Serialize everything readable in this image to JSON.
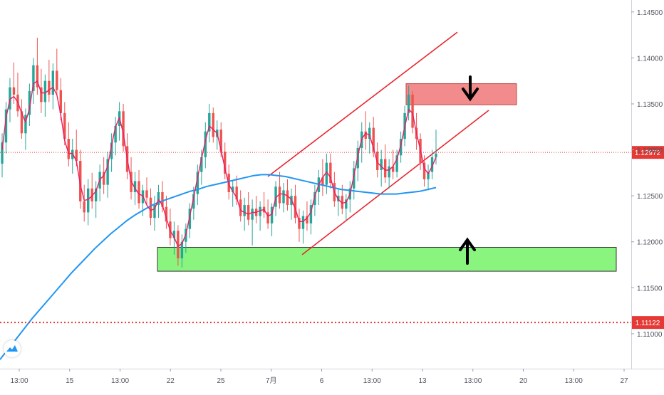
{
  "chart_data": {
    "type": "candlestick",
    "instrument_note": "",
    "y_axis": {
      "position": "right",
      "ylim": [
        1.1062,
        1.1463
      ],
      "ticks": [
        1.145,
        1.14,
        1.135,
        1.13,
        1.125,
        1.12,
        1.115,
        1.11
      ],
      "tick_labels": [
        "1.14500",
        "1.14000",
        "1.13500",
        "1.13000",
        "1.12500",
        "1.12000",
        "1.11500",
        "1.11000"
      ]
    },
    "x_axis": {
      "tick_labels": [
        "13:00",
        "15",
        "13:00",
        "22",
        "25",
        "7月",
        "6",
        "13:00",
        "13",
        "13:00",
        "20",
        "13:00",
        "27"
      ]
    },
    "price_lines": [
      {
        "label": "1.12972",
        "value": 1.12972,
        "color": "#e53935",
        "style": "dotted-thin"
      },
      {
        "label": "1.11122",
        "value": 1.11122,
        "color": "#e53935",
        "style": "dotted-bold"
      }
    ],
    "zones": [
      {
        "kind": "resistance",
        "from": 1.1349,
        "to": 1.1372,
        "color": "#f28b8b",
        "arrow": "down"
      },
      {
        "kind": "support",
        "from": 1.1168,
        "to": 1.1194,
        "color": "#8af57e",
        "arrow": "up"
      }
    ],
    "channel": {
      "color": "#e8262f",
      "lower_line": {
        "start": 1.1186,
        "end": 1.1343
      },
      "upper_line": {
        "start": 1.1271,
        "end": 1.1428
      }
    },
    "series": [
      {
        "kind": "ohlc",
        "up_color": "#26a69a",
        "down_color": "#ef5350",
        "values": [
          [
            1.1285,
            1.1318,
            1.127,
            1.1308
          ],
          [
            1.1308,
            1.1352,
            1.1296,
            1.1344
          ],
          [
            1.1344,
            1.1378,
            1.133,
            1.1368
          ],
          [
            1.1368,
            1.1395,
            1.135,
            1.136
          ],
          [
            1.136,
            1.1384,
            1.1336,
            1.1342
          ],
          [
            1.1342,
            1.1355,
            1.1312,
            1.1318
          ],
          [
            1.1318,
            1.1345,
            1.13,
            1.1338
          ],
          [
            1.1338,
            1.1372,
            1.1326,
            1.1364
          ],
          [
            1.1364,
            1.14,
            1.135,
            1.1392
          ],
          [
            1.1392,
            1.1422,
            1.136,
            1.1368
          ],
          [
            1.1368,
            1.1388,
            1.134,
            1.1352
          ],
          [
            1.1352,
            1.1382,
            1.1336,
            1.1375
          ],
          [
            1.1375,
            1.1398,
            1.1352,
            1.136
          ],
          [
            1.136,
            1.1394,
            1.1344,
            1.1386
          ],
          [
            1.1386,
            1.141,
            1.136,
            1.1365
          ],
          [
            1.1365,
            1.1378,
            1.1332,
            1.134
          ],
          [
            1.134,
            1.1352,
            1.1305,
            1.1312
          ],
          [
            1.1312,
            1.133,
            1.1282,
            1.129
          ],
          [
            1.129,
            1.1312,
            1.1274,
            1.13
          ],
          [
            1.13,
            1.1322,
            1.1282,
            1.1288
          ],
          [
            1.1288,
            1.13,
            1.1236,
            1.1244
          ],
          [
            1.1244,
            1.1262,
            1.1222,
            1.1232
          ],
          [
            1.1232,
            1.1268,
            1.1218,
            1.1258
          ],
          [
            1.1258,
            1.1275,
            1.1236,
            1.1244
          ],
          [
            1.1244,
            1.1266,
            1.1226,
            1.1258
          ],
          [
            1.1258,
            1.1284,
            1.1244,
            1.1276
          ],
          [
            1.1276,
            1.1292,
            1.1252,
            1.1262
          ],
          [
            1.1262,
            1.1298,
            1.1248,
            1.129
          ],
          [
            1.129,
            1.1318,
            1.1276,
            1.1308
          ],
          [
            1.1308,
            1.1336,
            1.1294,
            1.1326
          ],
          [
            1.1326,
            1.1352,
            1.131,
            1.1342
          ],
          [
            1.1342,
            1.135,
            1.1298,
            1.1304
          ],
          [
            1.1304,
            1.1318,
            1.1268,
            1.1276
          ],
          [
            1.1276,
            1.1292,
            1.1246,
            1.1254
          ],
          [
            1.1254,
            1.1276,
            1.124,
            1.1266
          ],
          [
            1.1266,
            1.1278,
            1.1236,
            1.1242
          ],
          [
            1.1242,
            1.1262,
            1.1228,
            1.1256
          ],
          [
            1.1256,
            1.127,
            1.124,
            1.1248
          ],
          [
            1.1248,
            1.1258,
            1.1218,
            1.1226
          ],
          [
            1.1226,
            1.125,
            1.1212,
            1.124
          ],
          [
            1.124,
            1.1262,
            1.1226,
            1.1254
          ],
          [
            1.1254,
            1.1266,
            1.1232,
            1.1238
          ],
          [
            1.1238,
            1.125,
            1.1214,
            1.1222
          ],
          [
            1.1222,
            1.1236,
            1.1196,
            1.1204
          ],
          [
            1.1204,
            1.1222,
            1.1186,
            1.1212
          ],
          [
            1.1212,
            1.1218,
            1.1174,
            1.1182
          ],
          [
            1.1182,
            1.1208,
            1.1172,
            1.12
          ],
          [
            1.12,
            1.122,
            1.1188,
            1.1214
          ],
          [
            1.1214,
            1.1242,
            1.1204,
            1.1236
          ],
          [
            1.1236,
            1.126,
            1.1224,
            1.1252
          ],
          [
            1.1252,
            1.1284,
            1.124,
            1.1276
          ],
          [
            1.1276,
            1.13,
            1.1262,
            1.1292
          ],
          [
            1.1292,
            1.133,
            1.128,
            1.132
          ],
          [
            1.132,
            1.135,
            1.1308,
            1.134
          ],
          [
            1.134,
            1.1346,
            1.1308,
            1.1314
          ],
          [
            1.1314,
            1.1332,
            1.13,
            1.1322
          ],
          [
            1.1322,
            1.133,
            1.1292,
            1.1298
          ],
          [
            1.1298,
            1.1308,
            1.1268,
            1.1274
          ],
          [
            1.1274,
            1.1284,
            1.1246,
            1.1254
          ],
          [
            1.1254,
            1.1266,
            1.1238,
            1.126
          ],
          [
            1.126,
            1.1272,
            1.124,
            1.1246
          ],
          [
            1.1246,
            1.1256,
            1.1222,
            1.1228
          ],
          [
            1.1228,
            1.1248,
            1.1212,
            1.124
          ],
          [
            1.124,
            1.1254,
            1.1218,
            1.1224
          ],
          [
            1.1224,
            1.1246,
            1.1196,
            1.1236
          ],
          [
            1.1236,
            1.125,
            1.122,
            1.1228
          ],
          [
            1.1228,
            1.1244,
            1.1212,
            1.1238
          ],
          [
            1.1238,
            1.1254,
            1.1226,
            1.1232
          ],
          [
            1.1232,
            1.1246,
            1.1214,
            1.122
          ],
          [
            1.122,
            1.1242,
            1.1206,
            1.1238
          ],
          [
            1.1238,
            1.1266,
            1.1228,
            1.126
          ],
          [
            1.126,
            1.1276,
            1.1236,
            1.1242
          ],
          [
            1.1242,
            1.1264,
            1.1232,
            1.1256
          ],
          [
            1.1256,
            1.1268,
            1.1234,
            1.124
          ],
          [
            1.124,
            1.1258,
            1.1224,
            1.125
          ],
          [
            1.125,
            1.1262,
            1.122,
            1.1226
          ],
          [
            1.1226,
            1.1236,
            1.12,
            1.1214
          ],
          [
            1.1214,
            1.1234,
            1.1198,
            1.1228
          ],
          [
            1.1228,
            1.1244,
            1.1212,
            1.122
          ],
          [
            1.122,
            1.1246,
            1.1208,
            1.124
          ],
          [
            1.124,
            1.1262,
            1.1228,
            1.1254
          ],
          [
            1.1254,
            1.1278,
            1.124,
            1.127
          ],
          [
            1.127,
            1.129,
            1.125,
            1.1262
          ],
          [
            1.1262,
            1.1296,
            1.1252,
            1.1286
          ],
          [
            1.1286,
            1.1296,
            1.1258,
            1.1264
          ],
          [
            1.1264,
            1.1276,
            1.1238,
            1.1244
          ],
          [
            1.1244,
            1.1258,
            1.1228,
            1.125
          ],
          [
            1.125,
            1.1262,
            1.123,
            1.1236
          ],
          [
            1.1236,
            1.1252,
            1.1224,
            1.1246
          ],
          [
            1.1246,
            1.1266,
            1.1232,
            1.1258
          ],
          [
            1.1258,
            1.1288,
            1.1246,
            1.128
          ],
          [
            1.128,
            1.131,
            1.1266,
            1.1302
          ],
          [
            1.1302,
            1.133,
            1.1286,
            1.132
          ],
          [
            1.132,
            1.1342,
            1.13,
            1.1312
          ],
          [
            1.1312,
            1.133,
            1.1296,
            1.1324
          ],
          [
            1.1324,
            1.1336,
            1.1292,
            1.1298
          ],
          [
            1.1298,
            1.1308,
            1.127,
            1.1278
          ],
          [
            1.1278,
            1.13,
            1.126,
            1.129
          ],
          [
            1.129,
            1.1306,
            1.1264,
            1.127
          ],
          [
            1.127,
            1.129,
            1.1258,
            1.1282
          ],
          [
            1.1282,
            1.13,
            1.1268,
            1.1276
          ],
          [
            1.1276,
            1.13,
            1.127,
            1.1294
          ],
          [
            1.1294,
            1.132,
            1.1286,
            1.1312
          ],
          [
            1.1312,
            1.1348,
            1.1304,
            1.134
          ],
          [
            1.134,
            1.137,
            1.1332,
            1.136
          ],
          [
            1.136,
            1.1364,
            1.1318,
            1.1324
          ],
          [
            1.1324,
            1.134,
            1.13,
            1.1312
          ],
          [
            1.1312,
            1.1318,
            1.1278,
            1.1286
          ],
          [
            1.1286,
            1.1294,
            1.126,
            1.1268
          ],
          [
            1.1268,
            1.1284,
            1.1256,
            1.1276
          ],
          [
            1.1276,
            1.13,
            1.1268,
            1.1292
          ],
          [
            1.1292,
            1.1322,
            1.1284,
            1.1296
          ]
        ]
      },
      {
        "kind": "moving_average",
        "color": "#2196f3",
        "values": [
          1.1072,
          1.1083,
          1.1094,
          1.1105,
          1.1116,
          1.1126,
          1.1136,
          1.1146,
          1.1156,
          1.1166,
          1.1175,
          1.1184,
          1.1193,
          1.1201,
          1.1209,
          1.1216,
          1.1223,
          1.1229,
          1.1234,
          1.1239,
          1.1243,
          1.1246,
          1.1249,
          1.1252,
          1.1255,
          1.1257,
          1.126,
          1.1262,
          1.1264,
          1.1266,
          1.1268,
          1.127,
          1.1272,
          1.1273,
          1.1273,
          1.1272,
          1.1271,
          1.1269,
          1.1267,
          1.1265,
          1.1263,
          1.1261,
          1.1259,
          1.1257,
          1.1256,
          1.1255,
          1.1254,
          1.1253,
          1.1252,
          1.1252,
          1.1252,
          1.1253,
          1.1254,
          1.1255,
          1.1257,
          1.1259
        ]
      },
      {
        "kind": "moving_average",
        "color": "#e91e63",
        "values": [
          1.13,
          1.1335,
          1.1355,
          1.1358,
          1.1352,
          1.134,
          1.133,
          1.1345,
          1.1372,
          1.1375,
          1.1362,
          1.1362,
          1.1365,
          1.1368,
          1.136,
          1.1338,
          1.131,
          1.1296,
          1.1296,
          1.1288,
          1.1262,
          1.1245,
          1.1246,
          1.125,
          1.1255,
          1.1268,
          1.1272,
          1.1282,
          1.1305,
          1.1325,
          1.1335,
          1.1318,
          1.129,
          1.1266,
          1.1258,
          1.1252,
          1.125,
          1.124,
          1.1234,
          1.1236,
          1.1246,
          1.124,
          1.1226,
          1.1212,
          1.1205,
          1.1195,
          1.1198,
          1.1208,
          1.1228,
          1.1248,
          1.127,
          1.129,
          1.131,
          1.1326,
          1.1322,
          1.1318,
          1.13,
          1.128,
          1.1262,
          1.1255,
          1.1248,
          1.1234,
          1.1232,
          1.123,
          1.1232,
          1.1232,
          1.1234,
          1.1235,
          1.1228,
          1.123,
          1.1248,
          1.1252,
          1.1252,
          1.125,
          1.1246,
          1.1236,
          1.1222,
          1.1222,
          1.1226,
          1.1232,
          1.125,
          1.1262,
          1.127,
          1.1276,
          1.127,
          1.1254,
          1.1246,
          1.1242,
          1.1243,
          1.1252,
          1.1272,
          1.1294,
          1.1312,
          1.1318,
          1.1316,
          1.1302,
          1.1286,
          1.1282,
          1.1278,
          1.1278,
          1.1282,
          1.129,
          1.1305,
          1.1325,
          1.1344,
          1.134,
          1.1318,
          1.13,
          1.128,
          1.1274,
          1.1282,
          1.1292
        ]
      }
    ]
  }
}
